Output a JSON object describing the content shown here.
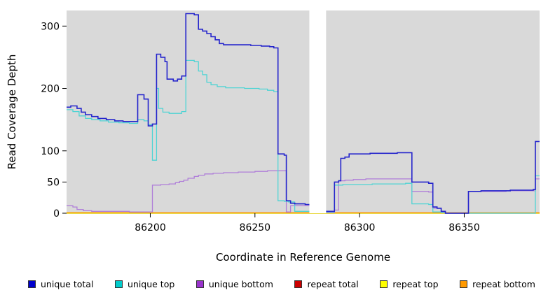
{
  "chart_data": {
    "type": "line",
    "step": true,
    "title": "",
    "xlabel": "Coordinate in Reference Genome",
    "ylabel": "Read Coverage Depth",
    "xlim": [
      86160,
      86386
    ],
    "ylim": [
      0,
      325
    ],
    "xticks": [
      86200,
      86250,
      86300,
      86350
    ],
    "yticks": [
      0,
      50,
      100,
      200,
      300
    ],
    "grid": false,
    "plot_bg": "#d9d9d9",
    "page_bg": "#ffffff",
    "mask_region": [
      86276,
      86284
    ],
    "legend_position": "bottom",
    "series": [
      {
        "id": "repeat-total",
        "name": "repeat total",
        "color": "#cc2222",
        "points": [
          [
            86160,
            0
          ],
          [
            86385,
            0
          ]
        ]
      },
      {
        "id": "repeat-top",
        "name": "repeat top",
        "color": "#e6e600",
        "points": [
          [
            86160,
            0
          ],
          [
            86385,
            0
          ]
        ]
      },
      {
        "id": "repeat-bottom",
        "name": "repeat bottom",
        "color": "#ff9900",
        "points": [
          [
            86160,
            1
          ],
          [
            86199,
            1
          ],
          [
            86201,
            0.8
          ],
          [
            86340,
            0.8
          ],
          [
            86352,
            0.8
          ],
          [
            86385,
            0.8
          ]
        ]
      },
      {
        "id": "unique-bottom",
        "name": "unique bottom",
        "color": "#b07fd9",
        "points": [
          [
            86160,
            12
          ],
          [
            86163,
            10
          ],
          [
            86165,
            6
          ],
          [
            86168,
            4
          ],
          [
            86172,
            3
          ],
          [
            86180,
            3
          ],
          [
            86190,
            2
          ],
          [
            86199,
            2
          ],
          [
            86201,
            45
          ],
          [
            86205,
            46
          ],
          [
            86209,
            47
          ],
          [
            86212,
            49
          ],
          [
            86214,
            51
          ],
          [
            86216,
            53
          ],
          [
            86218,
            56
          ],
          [
            86221,
            59
          ],
          [
            86223,
            61
          ],
          [
            86226,
            63
          ],
          [
            86230,
            64
          ],
          [
            86235,
            65
          ],
          [
            86242,
            66
          ],
          [
            86250,
            67
          ],
          [
            86256,
            68
          ],
          [
            86264,
            68
          ],
          [
            86265,
            2
          ],
          [
            86267,
            12
          ],
          [
            86277,
            12
          ],
          [
            86279,
            1
          ],
          [
            86287,
            1
          ],
          [
            86288,
            5
          ],
          [
            86290,
            52
          ],
          [
            86293,
            53
          ],
          [
            86297,
            54
          ],
          [
            86303,
            55
          ],
          [
            86312,
            55
          ],
          [
            86320,
            55
          ],
          [
            86324,
            55
          ],
          [
            86325,
            35
          ],
          [
            86330,
            35
          ],
          [
            86333,
            34
          ],
          [
            86335,
            8
          ],
          [
            86339,
            2
          ],
          [
            86341,
            0
          ],
          [
            86351,
            0
          ],
          [
            86352,
            35
          ],
          [
            86360,
            35
          ],
          [
            86370,
            36
          ],
          [
            86380,
            36
          ],
          [
            86383,
            36
          ],
          [
            86384,
            55
          ]
        ]
      },
      {
        "id": "unique-top",
        "name": "unique top",
        "color": "#4fd4d4",
        "points": [
          [
            86160,
            166
          ],
          [
            86163,
            163
          ],
          [
            86166,
            156
          ],
          [
            86169,
            152
          ],
          [
            86172,
            150
          ],
          [
            86176,
            148
          ],
          [
            86180,
            146
          ],
          [
            86185,
            145
          ],
          [
            86190,
            144
          ],
          [
            86194,
            150
          ],
          [
            86197,
            148
          ],
          [
            86199,
            142
          ],
          [
            86201,
            85
          ],
          [
            86203,
            200
          ],
          [
            86204,
            168
          ],
          [
            86206,
            162
          ],
          [
            86209,
            160
          ],
          [
            86213,
            160
          ],
          [
            86215,
            163
          ],
          [
            86217,
            245
          ],
          [
            86221,
            243
          ],
          [
            86223,
            228
          ],
          [
            86225,
            222
          ],
          [
            86227,
            210
          ],
          [
            86229,
            206
          ],
          [
            86232,
            203
          ],
          [
            86236,
            201
          ],
          [
            86245,
            200
          ],
          [
            86252,
            199
          ],
          [
            86256,
            197
          ],
          [
            86259,
            195
          ],
          [
            86261,
            20
          ],
          [
            86264,
            19
          ],
          [
            86266,
            18
          ],
          [
            86269,
            3
          ],
          [
            86277,
            2
          ],
          [
            86287,
            2
          ],
          [
            86288,
            45
          ],
          [
            86292,
            46
          ],
          [
            86298,
            46
          ],
          [
            86306,
            47
          ],
          [
            86315,
            47
          ],
          [
            86322,
            48
          ],
          [
            86324,
            48
          ],
          [
            86325,
            15
          ],
          [
            86330,
            15
          ],
          [
            86333,
            14
          ],
          [
            86335,
            2
          ],
          [
            86339,
            1
          ],
          [
            86341,
            0
          ],
          [
            86351,
            0
          ],
          [
            86383,
            0
          ],
          [
            86384,
            60
          ]
        ]
      },
      {
        "id": "unique-total",
        "name": "unique total",
        "color": "#2424cc",
        "points": [
          [
            86160,
            170
          ],
          [
            86162,
            172
          ],
          [
            86165,
            168
          ],
          [
            86167,
            162
          ],
          [
            86169,
            158
          ],
          [
            86172,
            155
          ],
          [
            86175,
            152
          ],
          [
            86179,
            150
          ],
          [
            86183,
            148
          ],
          [
            86187,
            147
          ],
          [
            86191,
            147
          ],
          [
            86194,
            190
          ],
          [
            86197,
            183
          ],
          [
            86199,
            140
          ],
          [
            86201,
            143
          ],
          [
            86203,
            255
          ],
          [
            86205,
            250
          ],
          [
            86207,
            243
          ],
          [
            86208,
            215
          ],
          [
            86211,
            212
          ],
          [
            86213,
            215
          ],
          [
            86215,
            220
          ],
          [
            86217,
            320
          ],
          [
            86221,
            318
          ],
          [
            86223,
            295
          ],
          [
            86225,
            292
          ],
          [
            86227,
            288
          ],
          [
            86229,
            283
          ],
          [
            86231,
            278
          ],
          [
            86233,
            272
          ],
          [
            86235,
            270
          ],
          [
            86240,
            270
          ],
          [
            86248,
            269
          ],
          [
            86253,
            268
          ],
          [
            86257,
            267
          ],
          [
            86259,
            265
          ],
          [
            86261,
            95
          ],
          [
            86264,
            93
          ],
          [
            86265,
            20
          ],
          [
            86267,
            16
          ],
          [
            86269,
            15
          ],
          [
            86271,
            15
          ],
          [
            86274,
            14
          ],
          [
            86277,
            13
          ],
          [
            86279,
            3
          ],
          [
            86287,
            3
          ],
          [
            86288,
            50
          ],
          [
            86290,
            52
          ],
          [
            86291,
            88
          ],
          [
            86293,
            90
          ],
          [
            86295,
            95
          ],
          [
            86299,
            95
          ],
          [
            86305,
            96
          ],
          [
            86312,
            96
          ],
          [
            86318,
            97
          ],
          [
            86324,
            97
          ],
          [
            86325,
            50
          ],
          [
            86329,
            50
          ],
          [
            86333,
            48
          ],
          [
            86335,
            10
          ],
          [
            86337,
            8
          ],
          [
            86339,
            3
          ],
          [
            86341,
            0
          ],
          [
            86351,
            0
          ],
          [
            86352,
            35
          ],
          [
            86358,
            36
          ],
          [
            86365,
            36
          ],
          [
            86372,
            37
          ],
          [
            86378,
            37
          ],
          [
            86383,
            38
          ],
          [
            86384,
            115
          ]
        ]
      }
    ],
    "legend": [
      {
        "label": "unique total",
        "color": "#0000cc"
      },
      {
        "label": "unique top",
        "color": "#00cccc"
      },
      {
        "label": "unique bottom",
        "color": "#9933cc"
      },
      {
        "label": "repeat total",
        "color": "#cc0000"
      },
      {
        "label": "repeat top",
        "color": "#ffff00"
      },
      {
        "label": "repeat bottom",
        "color": "#ff9900"
      }
    ]
  }
}
